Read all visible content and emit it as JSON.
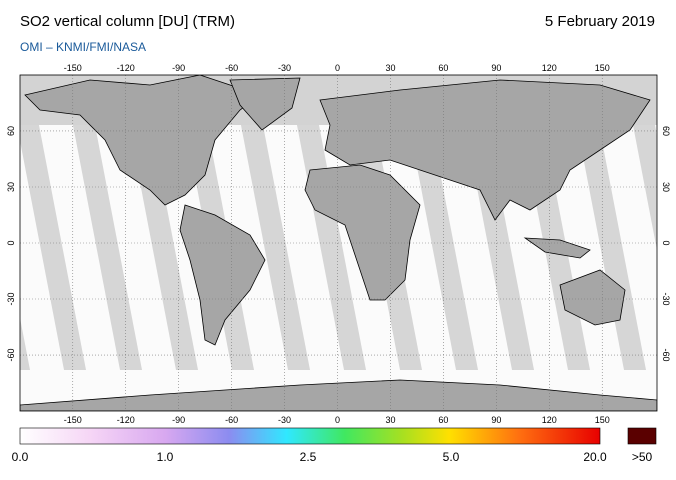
{
  "header": {
    "title": "SO2 vertical column [DU] (TRM)",
    "date": "5 February 2019",
    "credit": "OMI  –  KNMI/FMI/NASA"
  },
  "map": {
    "lon_ticks": [
      -150,
      -120,
      -90,
      -60,
      -30,
      0,
      30,
      60,
      90,
      120,
      150
    ],
    "lat_ticks": [
      60,
      30,
      0,
      -30,
      -60
    ]
  },
  "colorbar": {
    "labels": [
      "0.0",
      "1.0",
      "2.5",
      "5.0",
      "20.0",
      ">50"
    ]
  }
}
